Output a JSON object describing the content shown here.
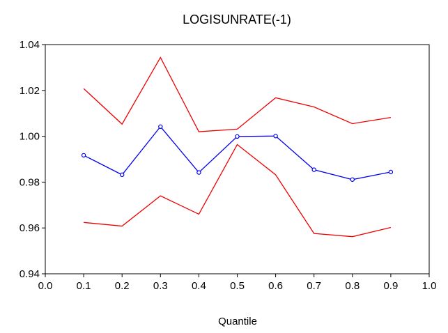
{
  "chart_data": {
    "type": "line",
    "title": "LOGISUNRATE(-1)",
    "xlabel": "Quantile",
    "ylabel": "",
    "xlim": [
      0.0,
      1.0
    ],
    "ylim": [
      0.94,
      1.04
    ],
    "xticks": [
      "0.0",
      "0.1",
      "0.2",
      "0.3",
      "0.4",
      "0.5",
      "0.6",
      "0.7",
      "0.8",
      "0.9",
      "1.0"
    ],
    "yticks": [
      "0.94",
      "0.96",
      "0.98",
      "1.00",
      "1.02",
      "1.04"
    ],
    "x": [
      0.1,
      0.2,
      0.3,
      0.4,
      0.5,
      0.6,
      0.7,
      0.8,
      0.9
    ],
    "grid": false,
    "legend": "none",
    "series": [
      {
        "color": "#ee0000",
        "markers": false,
        "values": [
          1.0208,
          1.0053,
          1.0344,
          1.002,
          1.0031,
          1.0168,
          1.0128,
          1.0055,
          1.0082
        ]
      },
      {
        "color": "#0000ee",
        "markers": true,
        "values": [
          0.9917,
          0.9832,
          1.0042,
          0.9842,
          0.9999,
          1.0001,
          0.9854,
          0.9811,
          0.9844
        ]
      },
      {
        "color": "#ee0000",
        "markers": false,
        "values": [
          0.9624,
          0.9608,
          0.974,
          0.966,
          0.9964,
          0.9832,
          0.9576,
          0.9562,
          0.9602
        ]
      }
    ]
  }
}
